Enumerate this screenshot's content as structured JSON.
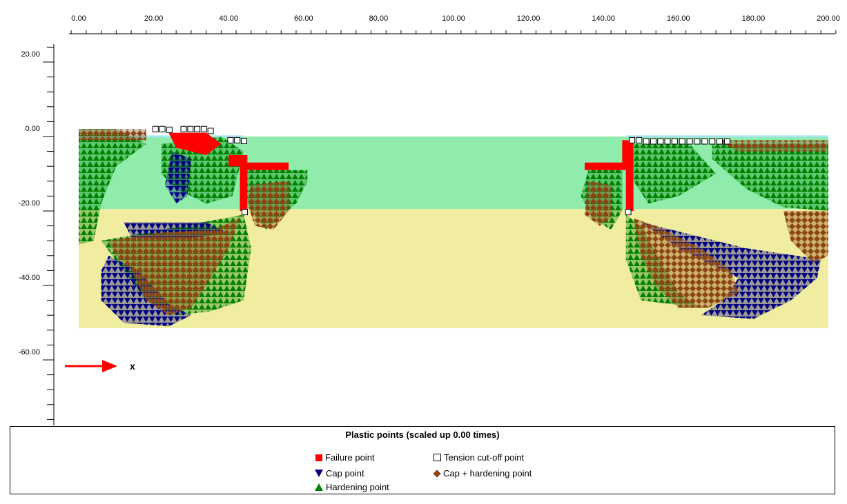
{
  "chart_data": {
    "type": "scatter",
    "title": "Plastic points (scaled up 0.00 times)",
    "x_ticks": [
      "0.00",
      "20.00",
      "40.00",
      "60.00",
      "80.00",
      "100.00",
      "120.00",
      "140.00",
      "160.00",
      "180.00",
      "200.00"
    ],
    "y_ticks": [
      "20.00",
      "0.00",
      "-20.00",
      "-40.00",
      "-60.00"
    ],
    "xlim": [
      -2,
      202
    ],
    "ylim": [
      -77,
      25
    ],
    "axis_arrow_label": "x",
    "soil_layers": [
      {
        "name": "upper layer",
        "color": "#8fecaa",
        "x": [
          0,
          200
        ],
        "y": [
          0,
          -19.5
        ]
      },
      {
        "name": "lower layer",
        "color": "#f0eca0",
        "x": [
          0,
          200
        ],
        "y": [
          -19.5,
          -51.5
        ]
      }
    ],
    "colors": {
      "failure": "#ff0000",
      "cap": "#000080",
      "hardening": "#008000",
      "cap_hardening": "#8b4513",
      "tension": "#ffffff",
      "top_water": "#a8e4f0"
    },
    "regions": [
      {
        "type": "hardening",
        "poly": [
          [
            0,
            2
          ],
          [
            10,
            2
          ],
          [
            18,
            -2
          ],
          [
            10,
            -8
          ],
          [
            6,
            -18
          ],
          [
            4,
            -28
          ],
          [
            0,
            -29
          ]
        ]
      },
      {
        "type": "hardening",
        "poly": [
          [
            22,
            -2
          ],
          [
            38,
            0
          ],
          [
            44,
            -4
          ],
          [
            41,
            -16
          ],
          [
            34,
            -18
          ],
          [
            26,
            -14
          ],
          [
            22,
            -10
          ]
        ]
      },
      {
        "type": "hardening",
        "poly": [
          [
            44,
            -9
          ],
          [
            61,
            -9
          ],
          [
            61,
            -12
          ],
          [
            58,
            -18
          ],
          [
            50,
            -25
          ],
          [
            46,
            -20
          ],
          [
            44,
            -14
          ]
        ]
      },
      {
        "type": "hardening",
        "poly": [
          [
            136,
            -9
          ],
          [
            145,
            -9
          ],
          [
            145,
            -20
          ],
          [
            142,
            -25
          ],
          [
            137,
            -22
          ],
          [
            134,
            -16
          ]
        ]
      },
      {
        "type": "hardening",
        "poly": [
          [
            148,
            -2
          ],
          [
            163,
            -2
          ],
          [
            170,
            -10
          ],
          [
            160,
            -16
          ],
          [
            152,
            -18
          ],
          [
            148,
            -12
          ]
        ]
      },
      {
        "type": "hardening",
        "poly": [
          [
            169,
            -2
          ],
          [
            200,
            -2
          ],
          [
            200,
            -20
          ],
          [
            188,
            -19
          ],
          [
            178,
            -14
          ],
          [
            169,
            -6
          ]
        ]
      },
      {
        "type": "hardening",
        "poly": [
          [
            6,
            -28
          ],
          [
            44,
            -21
          ],
          [
            46,
            -30
          ],
          [
            44,
            -44
          ],
          [
            35,
            -47
          ],
          [
            26,
            -48
          ],
          [
            18,
            -44
          ]
        ]
      },
      {
        "type": "hardening",
        "poly": [
          [
            146,
            -21
          ],
          [
            150,
            -24
          ],
          [
            160,
            -42
          ],
          [
            166,
            -46
          ],
          [
            150,
            -44
          ],
          [
            146,
            -33
          ]
        ]
      },
      {
        "type": "cap",
        "poly": [
          [
            12,
            -23
          ],
          [
            34,
            -23
          ],
          [
            40,
            -26
          ],
          [
            24,
            -28
          ],
          [
            14,
            -27
          ]
        ]
      },
      {
        "type": "cap",
        "poly": [
          [
            8,
            -32
          ],
          [
            16,
            -36
          ],
          [
            24,
            -45
          ],
          [
            30,
            -48
          ],
          [
            24,
            -51
          ],
          [
            12,
            -50
          ],
          [
            6,
            -44
          ],
          [
            6,
            -36
          ]
        ]
      },
      {
        "type": "cap",
        "poly": [
          [
            150,
            -23
          ],
          [
            162,
            -26
          ],
          [
            178,
            -30
          ],
          [
            198,
            -33
          ],
          [
            197,
            -38
          ],
          [
            190,
            -44
          ],
          [
            180,
            -49
          ],
          [
            166,
            -48
          ],
          [
            172,
            -44
          ],
          [
            176,
            -38
          ],
          [
            160,
            -30
          ]
        ]
      },
      {
        "type": "cap",
        "poly": [
          [
            25,
            -4
          ],
          [
            30,
            -6
          ],
          [
            29,
            -16
          ],
          [
            26,
            -18
          ],
          [
            23,
            -13
          ]
        ]
      },
      {
        "type": "cap_hardening",
        "poly": [
          [
            8,
            -28
          ],
          [
            20,
            -26
          ],
          [
            36,
            -25
          ],
          [
            43,
            -22
          ],
          [
            40,
            -30
          ],
          [
            34,
            -40
          ],
          [
            30,
            -46
          ],
          [
            24,
            -48
          ],
          [
            18,
            -44
          ],
          [
            14,
            -36
          ],
          [
            10,
            -32
          ]
        ]
      },
      {
        "type": "cap_hardening",
        "poly": [
          [
            148,
            -22
          ],
          [
            154,
            -24
          ],
          [
            166,
            -30
          ],
          [
            174,
            -36
          ],
          [
            176,
            -42
          ],
          [
            168,
            -46
          ],
          [
            160,
            -46
          ],
          [
            154,
            -40
          ],
          [
            150,
            -32
          ]
        ]
      },
      {
        "type": "cap_hardening",
        "poly": [
          [
            188,
            -20
          ],
          [
            200,
            -20
          ],
          [
            200,
            -32
          ],
          [
            196,
            -34
          ],
          [
            190,
            -28
          ]
        ]
      },
      {
        "type": "cap_hardening",
        "poly": [
          [
            46,
            -13
          ],
          [
            56,
            -12
          ],
          [
            56,
            -20
          ],
          [
            52,
            -25
          ],
          [
            47,
            -24
          ],
          [
            45,
            -18
          ]
        ]
      },
      {
        "type": "cap_hardening",
        "poly": [
          [
            136,
            -12
          ],
          [
            142,
            -13
          ],
          [
            142,
            -22
          ],
          [
            139,
            -24
          ],
          [
            135,
            -21
          ]
        ]
      },
      {
        "type": "cap_hardening",
        "poly": [
          [
            170,
            -1
          ],
          [
            200,
            -1
          ],
          [
            200,
            -4
          ],
          [
            176,
            -4
          ]
        ]
      },
      {
        "type": "cap_hardening",
        "poly": [
          [
            0,
            2
          ],
          [
            18,
            2
          ],
          [
            18,
            -1
          ],
          [
            0,
            -1
          ]
        ]
      },
      {
        "type": "failure",
        "poly": [
          [
            40,
            -5
          ],
          [
            45,
            -5
          ],
          [
            45,
            -7
          ],
          [
            56,
            -7
          ],
          [
            56,
            -9
          ],
          [
            45,
            -9
          ],
          [
            45,
            -20
          ],
          [
            43,
            -20
          ],
          [
            43,
            -8
          ],
          [
            40,
            -8
          ]
        ]
      },
      {
        "type": "failure",
        "poly": [
          [
            135,
            -7
          ],
          [
            145,
            -7
          ],
          [
            145,
            -1
          ],
          [
            148,
            -1
          ],
          [
            148,
            -20
          ],
          [
            146,
            -20
          ],
          [
            146,
            -9
          ],
          [
            135,
            -9
          ]
        ]
      },
      {
        "type": "failure",
        "poly": [
          [
            24,
            1
          ],
          [
            34,
            1
          ],
          [
            38,
            -2
          ],
          [
            34,
            -5
          ],
          [
            26,
            -3
          ]
        ]
      }
    ],
    "tension_points": [
      [
        20.5,
        2
      ],
      [
        22.3,
        2
      ],
      [
        24.2,
        1.8
      ],
      [
        28,
        2
      ],
      [
        29.8,
        2
      ],
      [
        31.6,
        2
      ],
      [
        33.4,
        2
      ],
      [
        35.2,
        1.5
      ],
      [
        40.5,
        -1
      ],
      [
        42.3,
        -1
      ],
      [
        44.1,
        -1.2
      ],
      [
        44.3,
        -20.3
      ],
      [
        147.6,
        -1
      ],
      [
        149.5,
        -1
      ],
      [
        151.4,
        -1.3
      ],
      [
        153.3,
        -1.3
      ],
      [
        155.2,
        -1.3
      ],
      [
        157.1,
        -1.3
      ],
      [
        159,
        -1.3
      ],
      [
        161,
        -1.3
      ],
      [
        163,
        -1.3
      ],
      [
        165,
        -1.3
      ],
      [
        167,
        -1.3
      ],
      [
        169,
        -1.3
      ],
      [
        171,
        -1.3
      ],
      [
        173,
        -1.3
      ],
      [
        146.6,
        -20.3
      ]
    ]
  },
  "legend": {
    "failure": "Failure point",
    "tension": "Tension cut-off point",
    "cap": "Cap point",
    "cap_hardening": "Cap + hardening point",
    "hardening": "Hardening point"
  }
}
